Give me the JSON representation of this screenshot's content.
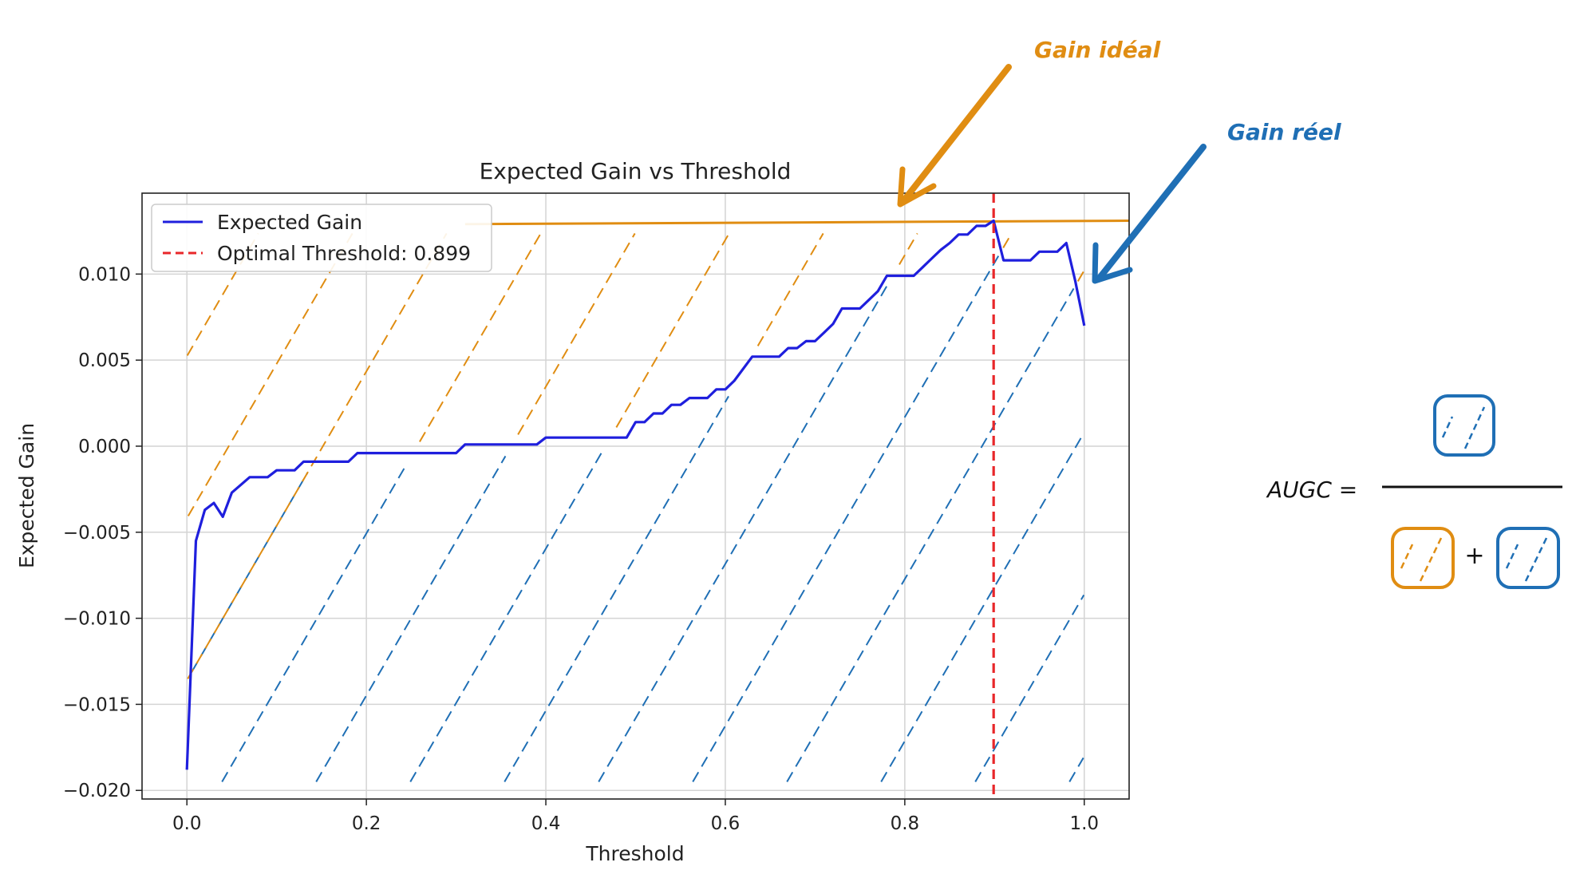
{
  "chart_data": {
    "type": "line",
    "title": "Expected Gain vs Threshold",
    "xlabel": "Threshold",
    "ylabel": "Expected Gain",
    "xlim": [
      -0.05,
      1.05
    ],
    "ylim": [
      -0.0205,
      0.0147
    ],
    "xticks": [
      0.0,
      0.2,
      0.4,
      0.6,
      0.8,
      1.0
    ],
    "xtick_labels": [
      "0.0",
      "0.2",
      "0.4",
      "0.6",
      "0.8",
      "1.0"
    ],
    "yticks": [
      -0.02,
      -0.015,
      -0.01,
      -0.005,
      0.0,
      0.005,
      0.01
    ],
    "ytick_labels": [
      "−0.020",
      "−0.015",
      "−0.010",
      "−0.005",
      "0.000",
      "0.005",
      "0.010"
    ],
    "grid": true,
    "legend_position": "top-left",
    "series": [
      {
        "name": "Expected Gain",
        "color": "#1f1fdd",
        "x": [
          0.0,
          0.01,
          0.02,
          0.03,
          0.04,
          0.05,
          0.07,
          0.09,
          0.1,
          0.12,
          0.13,
          0.15,
          0.18,
          0.19,
          0.3,
          0.31,
          0.39,
          0.4,
          0.49,
          0.5,
          0.51,
          0.52,
          0.53,
          0.54,
          0.55,
          0.56,
          0.57,
          0.58,
          0.59,
          0.6,
          0.61,
          0.63,
          0.65,
          0.66,
          0.67,
          0.68,
          0.69,
          0.7,
          0.71,
          0.72,
          0.73,
          0.74,
          0.75,
          0.76,
          0.77,
          0.78,
          0.79,
          0.8,
          0.81,
          0.82,
          0.83,
          0.84,
          0.85,
          0.86,
          0.87,
          0.88,
          0.89,
          0.899,
          0.91,
          0.92,
          0.93,
          0.94,
          0.95,
          0.96,
          0.97,
          0.98,
          0.99,
          1.0
        ],
        "y": [
          -0.0188,
          -0.0055,
          -0.0037,
          -0.0033,
          -0.0041,
          -0.0027,
          -0.0018,
          -0.0018,
          -0.0014,
          -0.0014,
          -0.0009,
          -0.0009,
          -0.0009,
          -0.0004,
          -0.0004,
          0.0001,
          0.0001,
          0.0005,
          0.0005,
          0.0014,
          0.0014,
          0.0019,
          0.0019,
          0.0024,
          0.0024,
          0.0028,
          0.0028,
          0.0028,
          0.0033,
          0.0033,
          0.0038,
          0.0052,
          0.0052,
          0.0052,
          0.0057,
          0.0057,
          0.0061,
          0.0061,
          0.0066,
          0.0071,
          0.008,
          0.008,
          0.008,
          0.0085,
          0.009,
          0.0099,
          0.0099,
          0.0099,
          0.0099,
          0.0104,
          0.0109,
          0.0114,
          0.0118,
          0.0123,
          0.0123,
          0.0128,
          0.0128,
          0.0131,
          0.0108,
          0.0108,
          0.0108,
          0.0108,
          0.0113,
          0.0113,
          0.0113,
          0.0118,
          0.0096,
          0.007
        ]
      },
      {
        "name": "Optimal Threshold: 0.899",
        "color": "#e8272a",
        "style": "dashed",
        "x_vertical": 0.899
      }
    ],
    "ideal_gain_line": {
      "color": "#e08d12",
      "x": [
        0.31,
        1.05
      ],
      "y": [
        0.0129,
        0.0131
      ]
    }
  },
  "annotations": {
    "ideal_label": "Gain idéal",
    "real_label": "Gain réel",
    "ideal_color": "#e08d12",
    "real_color": "#1f6fb5"
  },
  "formula": {
    "lhs": "AUGC =",
    "plus": "+"
  }
}
